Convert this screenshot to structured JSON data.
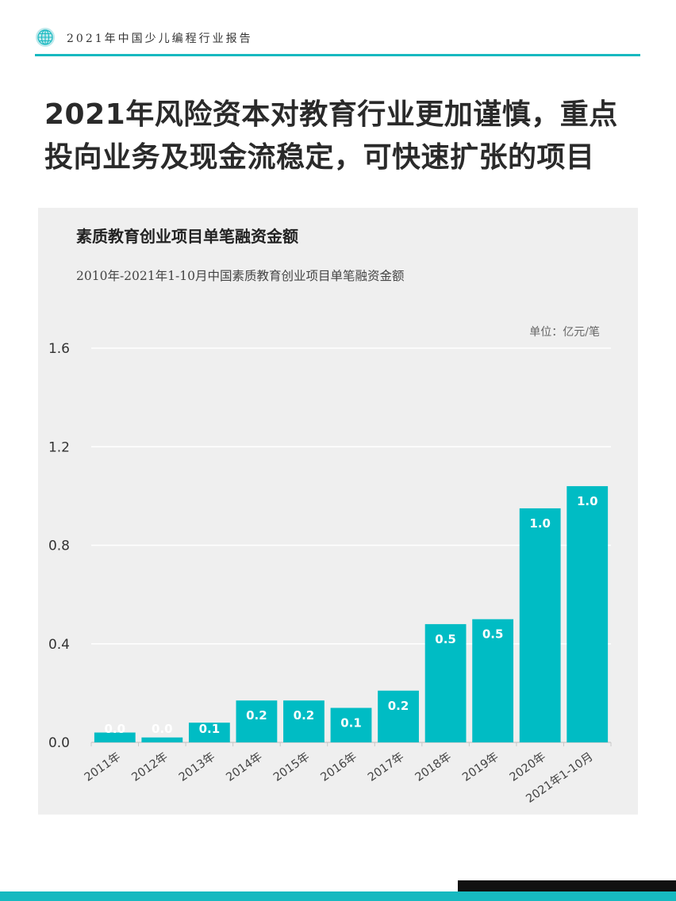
{
  "header": {
    "report_title": "2021年中国少儿编程行业报告"
  },
  "headline": {
    "line1": "2021年风险资本对教育行业更加谨慎，重点",
    "line2": "投向业务及现金流稳定，可快速扩张的项目"
  },
  "colors": {
    "accent": "#17b9c0",
    "bar": "#00bcc4",
    "panel_bg": "#efefef",
    "grid": "#ffffff"
  },
  "chart_data": {
    "type": "bar",
    "title": "素质教育创业项目单笔融资金额",
    "subtitle": "2010年-2021年1-10月中国素质教育创业项目单笔融资金额",
    "unit": "单位：亿元/笔",
    "categories": [
      "2011年",
      "2012年",
      "2013年",
      "2014年",
      "2015年",
      "2016年",
      "2017年",
      "2018年",
      "2019年",
      "2020年",
      "2021年1-10月"
    ],
    "values": [
      0.04,
      0.02,
      0.08,
      0.17,
      0.17,
      0.14,
      0.21,
      0.48,
      0.5,
      0.95,
      1.04
    ],
    "data_labels": [
      "0.0",
      "0.0",
      "0.1",
      "0.2",
      "0.2",
      "0.1",
      "0.2",
      "0.5",
      "0.5",
      "1.0",
      "1.0"
    ],
    "y_ticks": [
      "0.0",
      "0.4",
      "0.8",
      "1.2",
      "1.6"
    ],
    "ylim": [
      0,
      1.6
    ],
    "grid": true,
    "legend": "none"
  }
}
